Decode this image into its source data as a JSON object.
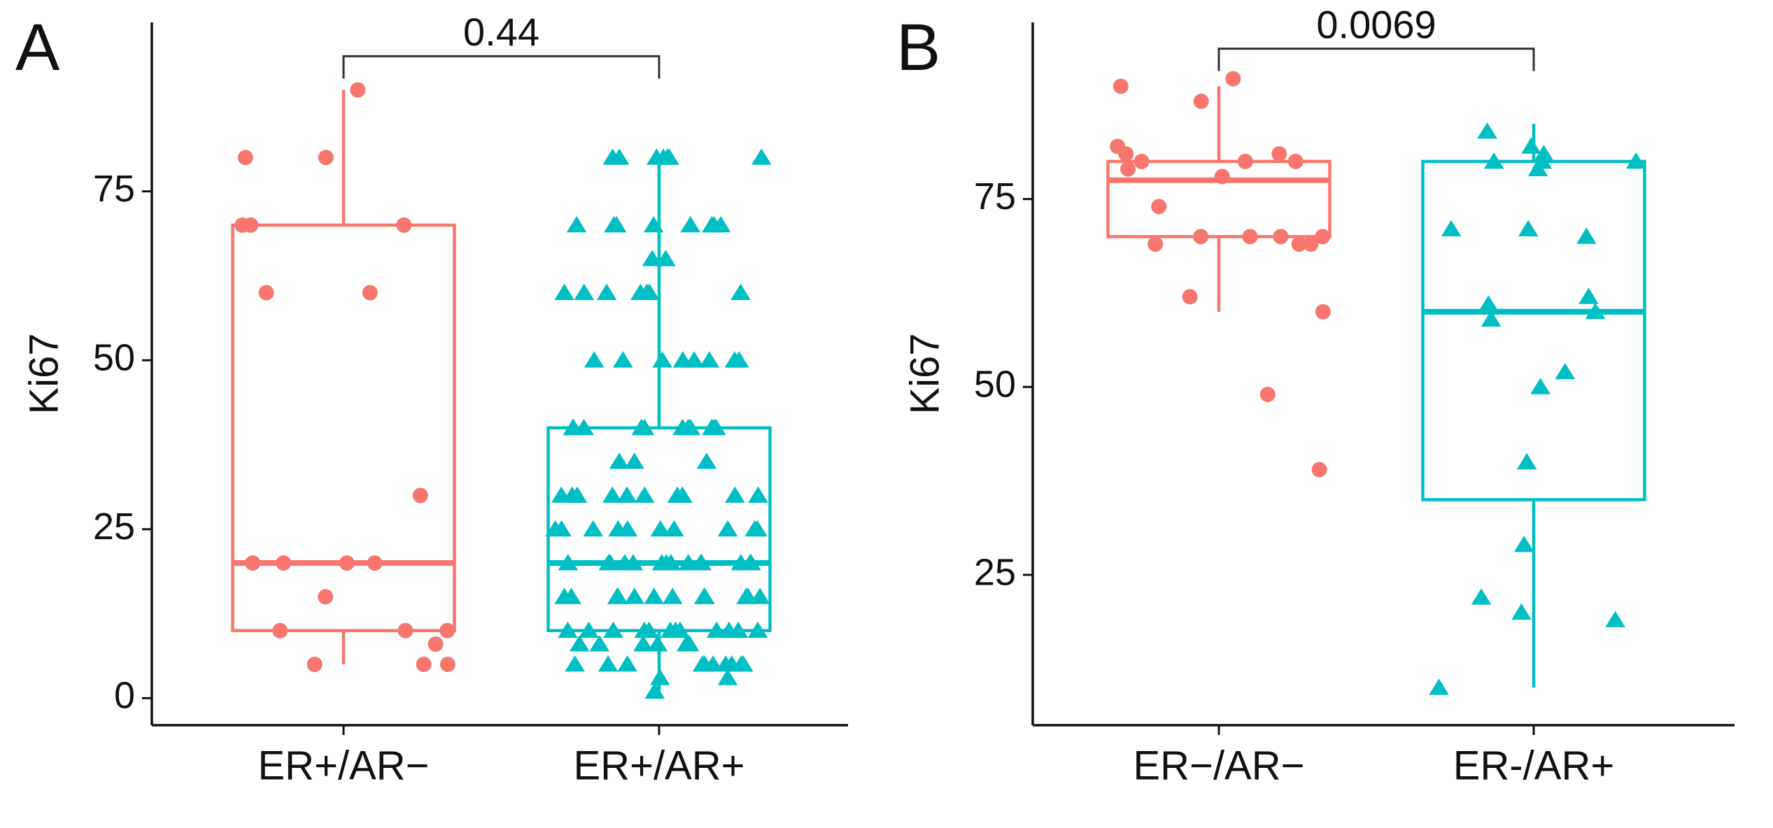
{
  "chart_data": [
    {
      "type": "box",
      "panel_label": "A",
      "ylabel": "Ki67",
      "categories": [
        "ER+/AR−",
        "ER+/AR+"
      ],
      "ylim": [
        -4,
        100
      ],
      "yticks": [
        0,
        25,
        50,
        75
      ],
      "comparison": {
        "label": "0.44",
        "y": 95
      },
      "groups": [
        {
          "color": "#F8766D",
          "marker": "circle",
          "box": {
            "whislo": 5,
            "q1": 10,
            "med": 20,
            "q3": 70,
            "whishi": 90
          },
          "points": [
            90,
            80,
            80,
            70,
            70,
            70,
            60,
            60,
            30,
            20,
            20,
            20,
            20,
            15,
            10,
            10,
            10,
            8,
            5,
            5,
            5
          ]
        },
        {
          "color": "#00BFC4",
          "marker": "triangle",
          "box": {
            "whislo": 1,
            "q1": 10,
            "med": 20,
            "q3": 40,
            "whishi": 80
          },
          "points": [
            80,
            80,
            80,
            80,
            80,
            80,
            80,
            70,
            70,
            70,
            70,
            70,
            70,
            70,
            70,
            65,
            65,
            60,
            60,
            60,
            60,
            60,
            60,
            60,
            50,
            50,
            50,
            50,
            50,
            50,
            50,
            50,
            40,
            40,
            40,
            40,
            40,
            40,
            40,
            40,
            40,
            40,
            40,
            35,
            35,
            35,
            30,
            30,
            30,
            30,
            30,
            30,
            30,
            30,
            30,
            30,
            25,
            25,
            25,
            25,
            25,
            25,
            25,
            25,
            25,
            25,
            20,
            20,
            20,
            20,
            20,
            20,
            20,
            20,
            20,
            20,
            20,
            20,
            20,
            20,
            15,
            15,
            15,
            15,
            15,
            15,
            15,
            15,
            15,
            15,
            15,
            15,
            10,
            10,
            10,
            10,
            10,
            10,
            10,
            10,
            10,
            10,
            10,
            10,
            8,
            8,
            8,
            8,
            8,
            8,
            5,
            5,
            5,
            5,
            5,
            5,
            5,
            5,
            5,
            5,
            3,
            3,
            1
          ]
        }
      ]
    },
    {
      "type": "box",
      "panel_label": "B",
      "ylabel": "Ki67",
      "categories": [
        "ER−/AR−",
        "ER-/AR+"
      ],
      "ylim": [
        5,
        98.5
      ],
      "yticks": [
        25,
        50,
        75
      ],
      "comparison": {
        "label": "0.0069",
        "y": 95
      },
      "groups": [
        {
          "color": "#F8766D",
          "marker": "circle",
          "box": {
            "whislo": 60,
            "q1": 70,
            "med": 77.5,
            "q3": 80,
            "whishi": 90
          },
          "points": [
            91,
            90,
            88,
            82,
            81,
            81,
            80,
            80,
            80,
            79,
            78,
            74,
            70,
            70,
            70,
            70,
            69,
            69,
            69,
            62,
            60,
            49,
            39
          ]
        },
        {
          "color": "#00BFC4",
          "marker": "triangle",
          "box": {
            "whislo": 10,
            "q1": 35,
            "med": 60,
            "q3": 80,
            "whishi": 85
          },
          "points": [
            84,
            82,
            81,
            80,
            80,
            80,
            79,
            71,
            71,
            70,
            62,
            61,
            60,
            59,
            52,
            50,
            40,
            29,
            22,
            20,
            19,
            10
          ]
        }
      ]
    }
  ]
}
